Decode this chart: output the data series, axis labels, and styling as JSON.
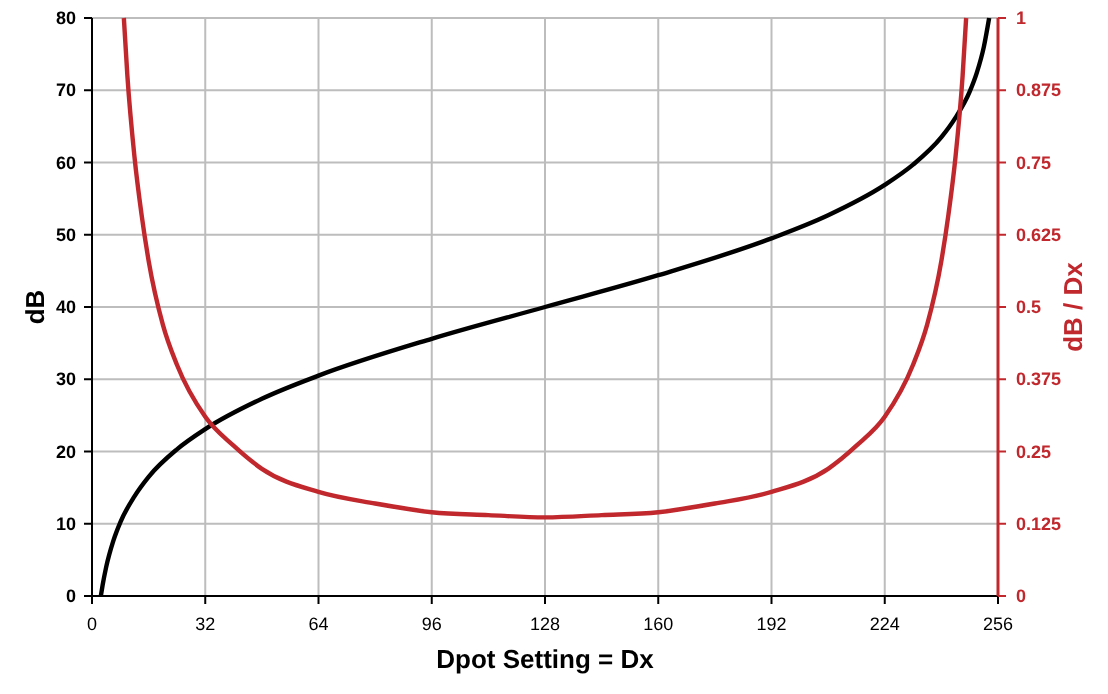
{
  "chart_data": {
    "type": "line",
    "xlabel": "Dpot Setting = Dx",
    "ylabel": "dB",
    "y2label": "dB / Dx",
    "xlim": [
      0,
      256
    ],
    "xticks": [
      0,
      32,
      64,
      96,
      128,
      160,
      192,
      224,
      256
    ],
    "ylim": [
      0,
      80
    ],
    "yticks": [
      0,
      10,
      20,
      30,
      40,
      50,
      60,
      70,
      80
    ],
    "y2lim": [
      0,
      1
    ],
    "y2ticks": [
      0,
      0.125,
      0.25,
      0.375,
      0.5,
      0.625,
      0.75,
      0.875,
      1
    ],
    "grid": true,
    "marker": "none",
    "line_style": "solid",
    "series": [
      {
        "color": "#000000",
        "x": [
          2.5,
          3,
          4,
          6,
          8,
          12,
          16,
          24,
          32,
          48,
          64,
          96,
          128,
          160,
          192,
          208,
          224,
          232,
          240,
          244,
          248,
          250,
          252,
          253.5
        ],
        "values": [
          0,
          1.5,
          4,
          7.6,
          10.2,
          13.8,
          16.5,
          20.3,
          23.1,
          27.3,
          30.5,
          35.6,
          40,
          44.4,
          49.5,
          52.7,
          56.9,
          59.7,
          63.5,
          66.2,
          69.8,
          72.4,
          76,
          80
        ]
      },
      {
        "color": "#c0282d",
        "axis": "y2",
        "x": [
          9,
          10,
          12,
          14,
          16,
          20,
          24,
          32,
          40,
          48,
          64,
          80,
          96,
          112,
          128,
          144,
          160,
          176,
          192,
          208,
          216,
          224,
          232,
          236,
          240,
          242,
          244,
          246,
          247
        ],
        "values": [
          1,
          0.9,
          0.76,
          0.66,
          0.58,
          0.47,
          0.4,
          0.31,
          0.26,
          0.22,
          0.18,
          0.16,
          0.145,
          0.14,
          0.136,
          0.14,
          0.145,
          0.16,
          0.18,
          0.22,
          0.26,
          0.31,
          0.4,
          0.47,
          0.58,
          0.66,
          0.76,
          0.9,
          1
        ]
      }
    ]
  }
}
